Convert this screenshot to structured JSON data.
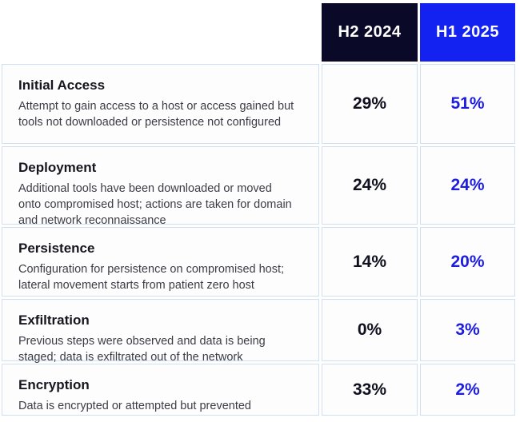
{
  "colors": {
    "header_h2_2024_bg": "#0a0a28",
    "header_h1_2025_bg": "#1322f0",
    "header_text": "#ffffff",
    "value_h2_2024_text": "#10101e",
    "value_h1_2025_text": "#1d1de0",
    "cell_border": "#cfe0f4",
    "cell_bg": "#fdfdfe",
    "stage_title_text": "#16161f",
    "stage_desc_text": "#3c3c46"
  },
  "table": {
    "column_headers": {
      "h2_2024": "H2 2024",
      "h1_2025": "H1 2025"
    },
    "rows": [
      {
        "stage": "Initial Access",
        "description": "Attempt to gain access to a host or access gained but tools not downloaded or persistence not configured",
        "h2_2024": "29%",
        "h1_2025": "51%"
      },
      {
        "stage": "Deployment",
        "description": "Additional tools have been downloaded or moved onto compromised host; actions are taken for domain and network reconnaissance",
        "h2_2024": "24%",
        "h1_2025": "24%"
      },
      {
        "stage": "Persistence",
        "description": "Configuration for persistence on compromised host; lateral movement starts from patient zero host",
        "h2_2024": "14%",
        "h1_2025": "20%"
      },
      {
        "stage": "Exfiltration",
        "description": "Previous steps were observed and data is being staged; data is exfiltrated out of the network",
        "h2_2024": "0%",
        "h1_2025": "3%"
      },
      {
        "stage": "Encryption",
        "description": "Data is encrypted or attempted but prevented",
        "h2_2024": "33%",
        "h1_2025": "2%"
      }
    ]
  },
  "chart_data": {
    "type": "table",
    "title": "",
    "columns": [
      "",
      "H2 2024",
      "H1 2025"
    ],
    "categories": [
      "Initial Access",
      "Deployment",
      "Persistence",
      "Exfiltration",
      "Encryption"
    ],
    "series": [
      {
        "name": "H2 2024",
        "values": [
          29,
          24,
          14,
          0,
          33
        ]
      },
      {
        "name": "H1 2025",
        "values": [
          51,
          24,
          20,
          3,
          2
        ]
      }
    ],
    "unit": "%"
  }
}
